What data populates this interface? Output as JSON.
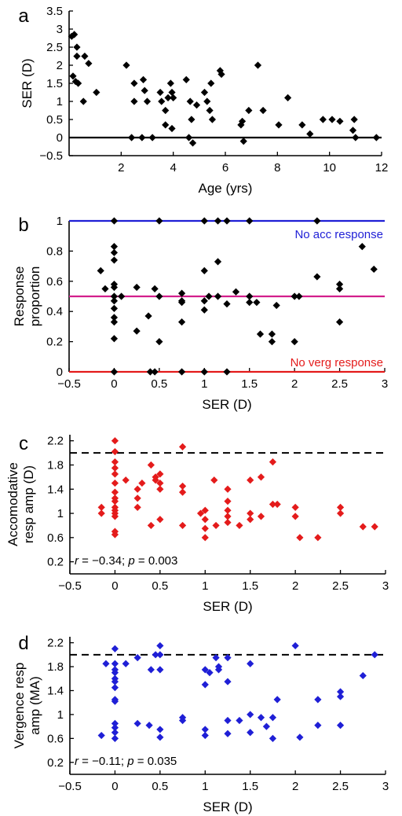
{
  "chart_data": [
    {
      "panel": "a",
      "type": "scatter",
      "xlabel": "Age (yrs)",
      "ylabel": "SER (D)",
      "xlim": [
        0,
        12
      ],
      "ylim": [
        -0.5,
        3.5
      ],
      "xticks": [
        "2",
        "4",
        "6",
        "8",
        "10",
        "12"
      ],
      "yticks": [
        "3.5",
        "3",
        "2.5",
        "2",
        "1.5",
        "1",
        "0.5",
        "0",
        "−0.5"
      ],
      "marker_color": "#000000",
      "reference_line": {
        "y": 0,
        "style": "solid",
        "color": "#000000"
      },
      "points": [
        {
          "x": 0.1,
          "y": 2.8
        },
        {
          "x": 0.15,
          "y": 1.7
        },
        {
          "x": 0.2,
          "y": 2.85
        },
        {
          "x": 0.25,
          "y": 1.55
        },
        {
          "x": 0.3,
          "y": 2.5
        },
        {
          "x": 0.3,
          "y": 2.25
        },
        {
          "x": 0.35,
          "y": 1.5
        },
        {
          "x": 0.55,
          "y": 1.0
        },
        {
          "x": 0.6,
          "y": 2.25
        },
        {
          "x": 0.75,
          "y": 2.05
        },
        {
          "x": 1.05,
          "y": 1.25
        },
        {
          "x": 2.2,
          "y": 2.0
        },
        {
          "x": 2.4,
          "y": 0.0
        },
        {
          "x": 2.5,
          "y": 1.5
        },
        {
          "x": 2.5,
          "y": 1.0
        },
        {
          "x": 2.8,
          "y": 0.0
        },
        {
          "x": 2.85,
          "y": 1.6
        },
        {
          "x": 2.9,
          "y": 1.3
        },
        {
          "x": 3.0,
          "y": 1.0
        },
        {
          "x": 3.2,
          "y": 0.0
        },
        {
          "x": 3.5,
          "y": 1.25
        },
        {
          "x": 3.55,
          "y": 1.0
        },
        {
          "x": 3.7,
          "y": 0.75
        },
        {
          "x": 3.7,
          "y": 0.35
        },
        {
          "x": 3.8,
          "y": 1.1
        },
        {
          "x": 3.9,
          "y": 1.5
        },
        {
          "x": 3.95,
          "y": 1.25
        },
        {
          "x": 3.95,
          "y": 0.25
        },
        {
          "x": 4.0,
          "y": 1.1
        },
        {
          "x": 4.5,
          "y": 1.6
        },
        {
          "x": 4.6,
          "y": 0.0
        },
        {
          "x": 4.65,
          "y": 1.0
        },
        {
          "x": 4.7,
          "y": 0.5
        },
        {
          "x": 4.75,
          "y": -0.15
        },
        {
          "x": 4.9,
          "y": 0.9
        },
        {
          "x": 5.2,
          "y": 1.25
        },
        {
          "x": 5.3,
          "y": 1.0
        },
        {
          "x": 5.4,
          "y": 0.75
        },
        {
          "x": 5.45,
          "y": 1.5
        },
        {
          "x": 5.5,
          "y": 0.5
        },
        {
          "x": 5.8,
          "y": 1.85
        },
        {
          "x": 5.85,
          "y": 1.75
        },
        {
          "x": 6.6,
          "y": 0.35
        },
        {
          "x": 6.65,
          "y": 0.45
        },
        {
          "x": 6.7,
          "y": -0.1
        },
        {
          "x": 6.9,
          "y": 0.75
        },
        {
          "x": 7.25,
          "y": 2.0
        },
        {
          "x": 7.45,
          "y": 0.75
        },
        {
          "x": 8.05,
          "y": 0.35
        },
        {
          "x": 8.4,
          "y": 1.1
        },
        {
          "x": 8.95,
          "y": 0.35
        },
        {
          "x": 9.25,
          "y": 0.1
        },
        {
          "x": 9.75,
          "y": 0.5
        },
        {
          "x": 10.1,
          "y": 0.5
        },
        {
          "x": 10.4,
          "y": 0.45
        },
        {
          "x": 10.9,
          "y": 0.2
        },
        {
          "x": 10.95,
          "y": 0.5
        },
        {
          "x": 11.0,
          "y": 0.0
        },
        {
          "x": 11.8,
          "y": 0.0
        }
      ]
    },
    {
      "panel": "b",
      "type": "scatter",
      "xlabel": "SER (D)",
      "ylabel": "Response\nproportion",
      "xlim": [
        -0.5,
        3
      ],
      "ylim": [
        0,
        1
      ],
      "xticks": [
        "−0.5",
        "0",
        "0.5",
        "1",
        "1.5",
        "2",
        "2.5",
        "3"
      ],
      "yticks": [
        "1",
        "0.8",
        "0.6",
        "0.4",
        "0.2",
        "0"
      ],
      "marker_color": "#000000",
      "reference_lines": [
        {
          "y": 1,
          "color": "#1f1fd6",
          "label": "No acc response"
        },
        {
          "y": 0.5,
          "color": "#d21f8c",
          "label": ""
        },
        {
          "y": 0,
          "color": "#e41b1b",
          "label": "No verg response"
        }
      ],
      "points": [
        {
          "x": -0.15,
          "y": 0.67
        },
        {
          "x": -0.1,
          "y": 0.55
        },
        {
          "x": 0.0,
          "y": 0.83
        },
        {
          "x": 0.0,
          "y": 0.79
        },
        {
          "x": 0.0,
          "y": 0.74
        },
        {
          "x": 0.0,
          "y": 0.58
        },
        {
          "x": 0.0,
          "y": 0.56
        },
        {
          "x": 0.0,
          "y": 0.5
        },
        {
          "x": 0.0,
          "y": 0.47
        },
        {
          "x": 0.0,
          "y": 0.42
        },
        {
          "x": 0.0,
          "y": 0.36
        },
        {
          "x": 0.0,
          "y": 0.33
        },
        {
          "x": 0.0,
          "y": 0.22
        },
        {
          "x": 0.0,
          "y": 0.0
        },
        {
          "x": 0.0,
          "y": 1.0
        },
        {
          "x": 0.08,
          "y": 0.5
        },
        {
          "x": 0.25,
          "y": 0.56
        },
        {
          "x": 0.25,
          "y": 0.27
        },
        {
          "x": 0.38,
          "y": 0.37
        },
        {
          "x": 0.4,
          "y": 0.0
        },
        {
          "x": 0.45,
          "y": 0.0
        },
        {
          "x": 0.45,
          "y": 0.55
        },
        {
          "x": 0.5,
          "y": 0.2
        },
        {
          "x": 0.5,
          "y": 0.5
        },
        {
          "x": 0.5,
          "y": 1.0
        },
        {
          "x": 0.75,
          "y": 0.52
        },
        {
          "x": 0.75,
          "y": 0.47
        },
        {
          "x": 0.75,
          "y": 0.46
        },
        {
          "x": 0.75,
          "y": 0.33
        },
        {
          "x": 0.75,
          "y": 0.0
        },
        {
          "x": 1.0,
          "y": 0.67
        },
        {
          "x": 1.0,
          "y": 0.47
        },
        {
          "x": 1.0,
          "y": 0.41
        },
        {
          "x": 1.0,
          "y": 1.0
        },
        {
          "x": 1.05,
          "y": 0.5
        },
        {
          "x": 1.0,
          "y": 0.0
        },
        {
          "x": 1.15,
          "y": 0.73
        },
        {
          "x": 1.15,
          "y": 0.5
        },
        {
          "x": 1.15,
          "y": 1.0
        },
        {
          "x": 1.25,
          "y": 0.45
        },
        {
          "x": 1.25,
          "y": 1.0
        },
        {
          "x": 1.25,
          "y": 0.0
        },
        {
          "x": 1.35,
          "y": 0.53
        },
        {
          "x": 1.5,
          "y": 0.5
        },
        {
          "x": 1.5,
          "y": 0.46
        },
        {
          "x": 1.5,
          "y": 1.0
        },
        {
          "x": 1.58,
          "y": 0.46
        },
        {
          "x": 1.62,
          "y": 0.25
        },
        {
          "x": 1.75,
          "y": 0.25
        },
        {
          "x": 1.75,
          "y": 0.2
        },
        {
          "x": 1.8,
          "y": 0.44
        },
        {
          "x": 2.0,
          "y": 0.5
        },
        {
          "x": 2.0,
          "y": 0.2
        },
        {
          "x": 2.05,
          "y": 0.5
        },
        {
          "x": 2.25,
          "y": 0.63
        },
        {
          "x": 2.25,
          "y": 1.0
        },
        {
          "x": 2.5,
          "y": 0.58
        },
        {
          "x": 2.5,
          "y": 0.55
        },
        {
          "x": 2.5,
          "y": 0.33
        },
        {
          "x": 2.75,
          "y": 0.83
        },
        {
          "x": 2.88,
          "y": 0.68
        }
      ]
    },
    {
      "panel": "c",
      "type": "scatter",
      "xlabel": "SER (D)",
      "ylabel": "Accomodative\nresp amp (D)",
      "xlim": [
        -0.5,
        3
      ],
      "ylim": [
        0,
        2.3
      ],
      "xticks": [
        "−0.5",
        "0",
        "0.5",
        "1",
        "1.5",
        "2",
        "2.5",
        "3"
      ],
      "yticks": [
        "2.2",
        "1.8",
        "1.4",
        "1",
        "0.6",
        "0.2"
      ],
      "marker_color": "#e41b1b",
      "reference_line": {
        "y": 2.0,
        "style": "dashed",
        "color": "#000000"
      },
      "annotation": {
        "r": "−0.34",
        "p": "0.003"
      },
      "points": [
        {
          "x": -0.15,
          "y": 1.1
        },
        {
          "x": -0.15,
          "y": 1.0
        },
        {
          "x": 0.0,
          "y": 2.2
        },
        {
          "x": 0.0,
          "y": 2.02
        },
        {
          "x": 0.0,
          "y": 1.85
        },
        {
          "x": 0.0,
          "y": 1.75
        },
        {
          "x": 0.0,
          "y": 1.65
        },
        {
          "x": 0.0,
          "y": 1.5
        },
        {
          "x": 0.0,
          "y": 1.35
        },
        {
          "x": 0.0,
          "y": 1.25
        },
        {
          "x": 0.0,
          "y": 1.2
        },
        {
          "x": 0.0,
          "y": 1.1
        },
        {
          "x": 0.0,
          "y": 1.05
        },
        {
          "x": 0.0,
          "y": 1.0
        },
        {
          "x": 0.0,
          "y": 0.95
        },
        {
          "x": 0.0,
          "y": 0.7
        },
        {
          "x": 0.0,
          "y": 0.65
        },
        {
          "x": 0.12,
          "y": 1.55
        },
        {
          "x": 0.25,
          "y": 1.4
        },
        {
          "x": 0.25,
          "y": 1.25
        },
        {
          "x": 0.25,
          "y": 1.1
        },
        {
          "x": 0.3,
          "y": 1.5
        },
        {
          "x": 0.4,
          "y": 1.8
        },
        {
          "x": 0.4,
          "y": 0.8
        },
        {
          "x": 0.45,
          "y": 1.55
        },
        {
          "x": 0.45,
          "y": 1.6
        },
        {
          "x": 0.5,
          "y": 1.65
        },
        {
          "x": 0.5,
          "y": 1.5
        },
        {
          "x": 0.5,
          "y": 1.4
        },
        {
          "x": 0.5,
          "y": 0.9
        },
        {
          "x": 0.75,
          "y": 2.1
        },
        {
          "x": 0.75,
          "y": 1.45
        },
        {
          "x": 0.75,
          "y": 1.35
        },
        {
          "x": 0.75,
          "y": 0.8
        },
        {
          "x": 0.95,
          "y": 1.0
        },
        {
          "x": 1.0,
          "y": 1.05
        },
        {
          "x": 1.0,
          "y": 0.9
        },
        {
          "x": 1.0,
          "y": 0.75
        },
        {
          "x": 1.0,
          "y": 0.6
        },
        {
          "x": 1.1,
          "y": 1.55
        },
        {
          "x": 1.12,
          "y": 0.8
        },
        {
          "x": 1.25,
          "y": 1.4
        },
        {
          "x": 1.25,
          "y": 1.2
        },
        {
          "x": 1.25,
          "y": 1.05
        },
        {
          "x": 1.25,
          "y": 0.95
        },
        {
          "x": 1.25,
          "y": 0.85
        },
        {
          "x": 1.38,
          "y": 0.8
        },
        {
          "x": 1.5,
          "y": 1.55
        },
        {
          "x": 1.5,
          "y": 1.0
        },
        {
          "x": 1.5,
          "y": 0.9
        },
        {
          "x": 1.62,
          "y": 1.6
        },
        {
          "x": 1.62,
          "y": 0.95
        },
        {
          "x": 1.75,
          "y": 1.85
        },
        {
          "x": 1.75,
          "y": 1.15
        },
        {
          "x": 1.8,
          "y": 1.15
        },
        {
          "x": 2.0,
          "y": 1.1
        },
        {
          "x": 2.0,
          "y": 0.95
        },
        {
          "x": 2.05,
          "y": 0.6
        },
        {
          "x": 2.25,
          "y": 0.6
        },
        {
          "x": 2.5,
          "y": 1.1
        },
        {
          "x": 2.5,
          "y": 1.0
        },
        {
          "x": 2.75,
          "y": 0.78
        },
        {
          "x": 2.88,
          "y": 0.78
        }
      ]
    },
    {
      "panel": "d",
      "type": "scatter",
      "xlabel": "SER (D)",
      "ylabel": "Vergence resp\namp (MA)",
      "xlim": [
        -0.5,
        3
      ],
      "ylim": [
        0,
        2.3
      ],
      "xticks": [
        "−0.5",
        "0",
        "0.5",
        "1",
        "1.5",
        "2",
        "2.5",
        "3"
      ],
      "yticks": [
        "2.2",
        "1.8",
        "1.4",
        "1",
        "0.6",
        "0.2"
      ],
      "marker_color": "#1f1fd6",
      "reference_line": {
        "y": 2.0,
        "style": "dashed",
        "color": "#000000"
      },
      "annotation": {
        "r": "−0.11",
        "p": "0.035"
      },
      "points": [
        {
          "x": -0.15,
          "y": 0.65
        },
        {
          "x": -0.1,
          "y": 1.85
        },
        {
          "x": 0.0,
          "y": 2.1
        },
        {
          "x": 0.0,
          "y": 1.85
        },
        {
          "x": 0.0,
          "y": 1.75
        },
        {
          "x": 0.0,
          "y": 1.7
        },
        {
          "x": 0.0,
          "y": 1.6
        },
        {
          "x": 0.0,
          "y": 1.55
        },
        {
          "x": 0.0,
          "y": 1.45
        },
        {
          "x": 0.0,
          "y": 1.25
        },
        {
          "x": 0.0,
          "y": 1.22
        },
        {
          "x": 0.0,
          "y": 0.85
        },
        {
          "x": 0.0,
          "y": 0.78
        },
        {
          "x": 0.0,
          "y": 0.7
        },
        {
          "x": 0.0,
          "y": 0.6
        },
        {
          "x": 0.12,
          "y": 1.85
        },
        {
          "x": 0.25,
          "y": 1.95
        },
        {
          "x": 0.25,
          "y": 0.85
        },
        {
          "x": 0.38,
          "y": 0.82
        },
        {
          "x": 0.4,
          "y": 1.75
        },
        {
          "x": 0.45,
          "y": 2.0
        },
        {
          "x": 0.5,
          "y": 2.15
        },
        {
          "x": 0.5,
          "y": 2.0
        },
        {
          "x": 0.5,
          "y": 1.75
        },
        {
          "x": 0.5,
          "y": 0.75
        },
        {
          "x": 0.5,
          "y": 0.62
        },
        {
          "x": 0.75,
          "y": 0.95
        },
        {
          "x": 0.75,
          "y": 0.9
        },
        {
          "x": 1.0,
          "y": 1.75
        },
        {
          "x": 1.0,
          "y": 1.5
        },
        {
          "x": 1.0,
          "y": 0.75
        },
        {
          "x": 1.0,
          "y": 0.65
        },
        {
          "x": 1.05,
          "y": 1.7
        },
        {
          "x": 1.12,
          "y": 1.95
        },
        {
          "x": 1.15,
          "y": 1.8
        },
        {
          "x": 1.15,
          "y": 1.75
        },
        {
          "x": 1.25,
          "y": 1.95
        },
        {
          "x": 1.25,
          "y": 1.55
        },
        {
          "x": 1.25,
          "y": 0.9
        },
        {
          "x": 1.25,
          "y": 0.68
        },
        {
          "x": 1.38,
          "y": 0.9
        },
        {
          "x": 1.5,
          "y": 1.85
        },
        {
          "x": 1.5,
          "y": 1.0
        },
        {
          "x": 1.5,
          "y": 0.7
        },
        {
          "x": 1.62,
          "y": 0.95
        },
        {
          "x": 1.68,
          "y": 0.8
        },
        {
          "x": 1.75,
          "y": 0.6
        },
        {
          "x": 1.75,
          "y": 0.95
        },
        {
          "x": 1.8,
          "y": 1.25
        },
        {
          "x": 2.0,
          "y": 2.15
        },
        {
          "x": 2.05,
          "y": 0.62
        },
        {
          "x": 2.25,
          "y": 1.25
        },
        {
          "x": 2.25,
          "y": 0.82
        },
        {
          "x": 2.5,
          "y": 1.38
        },
        {
          "x": 2.5,
          "y": 1.3
        },
        {
          "x": 2.5,
          "y": 0.82
        },
        {
          "x": 2.75,
          "y": 1.65
        },
        {
          "x": 2.88,
          "y": 2.0
        }
      ]
    }
  ]
}
